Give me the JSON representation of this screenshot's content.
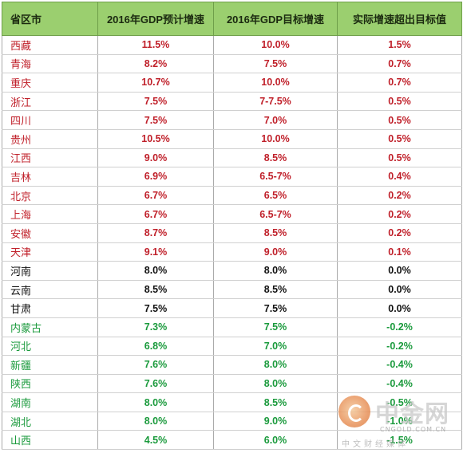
{
  "table": {
    "headers": [
      "省区市",
      "2016年GDP预计增速",
      "2016年GDP目标增速",
      "实际增速超出目标值"
    ],
    "rows": [
      {
        "group": "red",
        "cells": [
          "西藏",
          "11.5%",
          "10.0%",
          "1.5%"
        ]
      },
      {
        "group": "red",
        "cells": [
          "青海",
          "8.2%",
          "7.5%",
          "0.7%"
        ]
      },
      {
        "group": "red",
        "cells": [
          "重庆",
          "10.7%",
          "10.0%",
          "0.7%"
        ]
      },
      {
        "group": "red",
        "cells": [
          "浙江",
          "7.5%",
          "7-7.5%",
          "0.5%"
        ]
      },
      {
        "group": "red",
        "cells": [
          "四川",
          "7.5%",
          "7.0%",
          "0.5%"
        ]
      },
      {
        "group": "red",
        "cells": [
          "贵州",
          "10.5%",
          "10.0%",
          "0.5%"
        ]
      },
      {
        "group": "red",
        "cells": [
          "江西",
          "9.0%",
          "8.5%",
          "0.5%"
        ]
      },
      {
        "group": "red",
        "cells": [
          "吉林",
          "6.9%",
          "6.5-7%",
          "0.4%"
        ]
      },
      {
        "group": "red",
        "cells": [
          "北京",
          "6.7%",
          "6.5%",
          "0.2%"
        ]
      },
      {
        "group": "red",
        "cells": [
          "上海",
          "6.7%",
          "6.5-7%",
          "0.2%"
        ]
      },
      {
        "group": "red",
        "cells": [
          "安徽",
          "8.7%",
          "8.5%",
          "0.2%"
        ]
      },
      {
        "group": "red",
        "cells": [
          "天津",
          "9.1%",
          "9.0%",
          "0.1%"
        ]
      },
      {
        "group": "black",
        "cells": [
          "河南",
          "8.0%",
          "8.0%",
          "0.0%"
        ]
      },
      {
        "group": "black",
        "cells": [
          "云南",
          "8.5%",
          "8.5%",
          "0.0%"
        ]
      },
      {
        "group": "black",
        "cells": [
          "甘肃",
          "7.5%",
          "7.5%",
          "0.0%"
        ]
      },
      {
        "group": "green",
        "cells": [
          "内蒙古",
          "7.3%",
          "7.5%",
          "-0.2%"
        ]
      },
      {
        "group": "green",
        "cells": [
          "河北",
          "6.8%",
          "7.0%",
          "-0.2%"
        ]
      },
      {
        "group": "green",
        "cells": [
          "新疆",
          "7.6%",
          "8.0%",
          "-0.4%"
        ]
      },
      {
        "group": "green",
        "cells": [
          "陕西",
          "7.6%",
          "8.0%",
          "-0.4%"
        ]
      },
      {
        "group": "green",
        "cells": [
          "湖南",
          "8.0%",
          "8.5%",
          "-0.5%"
        ]
      },
      {
        "group": "green",
        "cells": [
          "湖北",
          "8.0%",
          "9.0%",
          "-1.0%"
        ]
      },
      {
        "group": "green",
        "cells": [
          "山西",
          "4.5%",
          "6.0%",
          "-1.5%"
        ]
      }
    ]
  },
  "watermark": {
    "brand": "中金网",
    "domain": "CNGOLD.COM.CN",
    "tagline": "中文财经媒体"
  },
  "colors": {
    "header_bg": "#9bcf6f",
    "positive": "#c0202a",
    "neutral": "#111111",
    "negative": "#1a9a3c"
  }
}
